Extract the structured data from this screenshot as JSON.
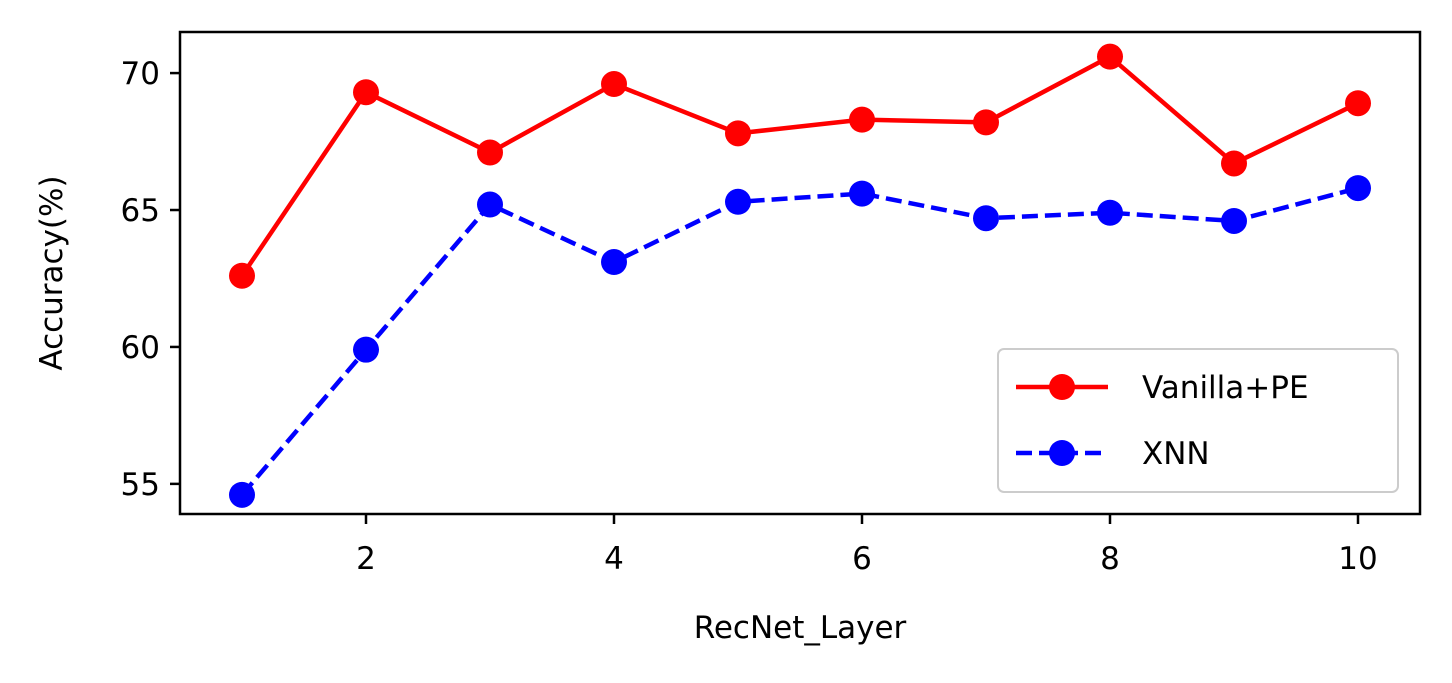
{
  "chart_data": {
    "type": "line",
    "title": "",
    "xlabel": "RecNet_Layer",
    "ylabel": "Accuracy(%)",
    "xlim": [
      0.5,
      10.5
    ],
    "ylim": [
      53.9,
      71.5
    ],
    "xticks": [
      2,
      4,
      6,
      8,
      10
    ],
    "yticks": [
      55,
      60,
      65,
      70
    ],
    "grid": false,
    "legend": "lower-right",
    "x": [
      1,
      2,
      3,
      4,
      5,
      6,
      7,
      8,
      9,
      10
    ],
    "series": [
      {
        "name": "Vanilla+PE",
        "color": "#ff0000",
        "style": "solid",
        "marker": "circle",
        "values": [
          62.6,
          69.3,
          67.1,
          69.6,
          67.8,
          68.3,
          68.2,
          70.6,
          66.7,
          68.9
        ]
      },
      {
        "name": "XNN",
        "color": "#0000ff",
        "style": "dashed",
        "marker": "circle",
        "values": [
          54.6,
          59.9,
          65.2,
          63.1,
          65.3,
          65.6,
          64.7,
          64.9,
          64.6,
          65.8
        ]
      }
    ]
  }
}
